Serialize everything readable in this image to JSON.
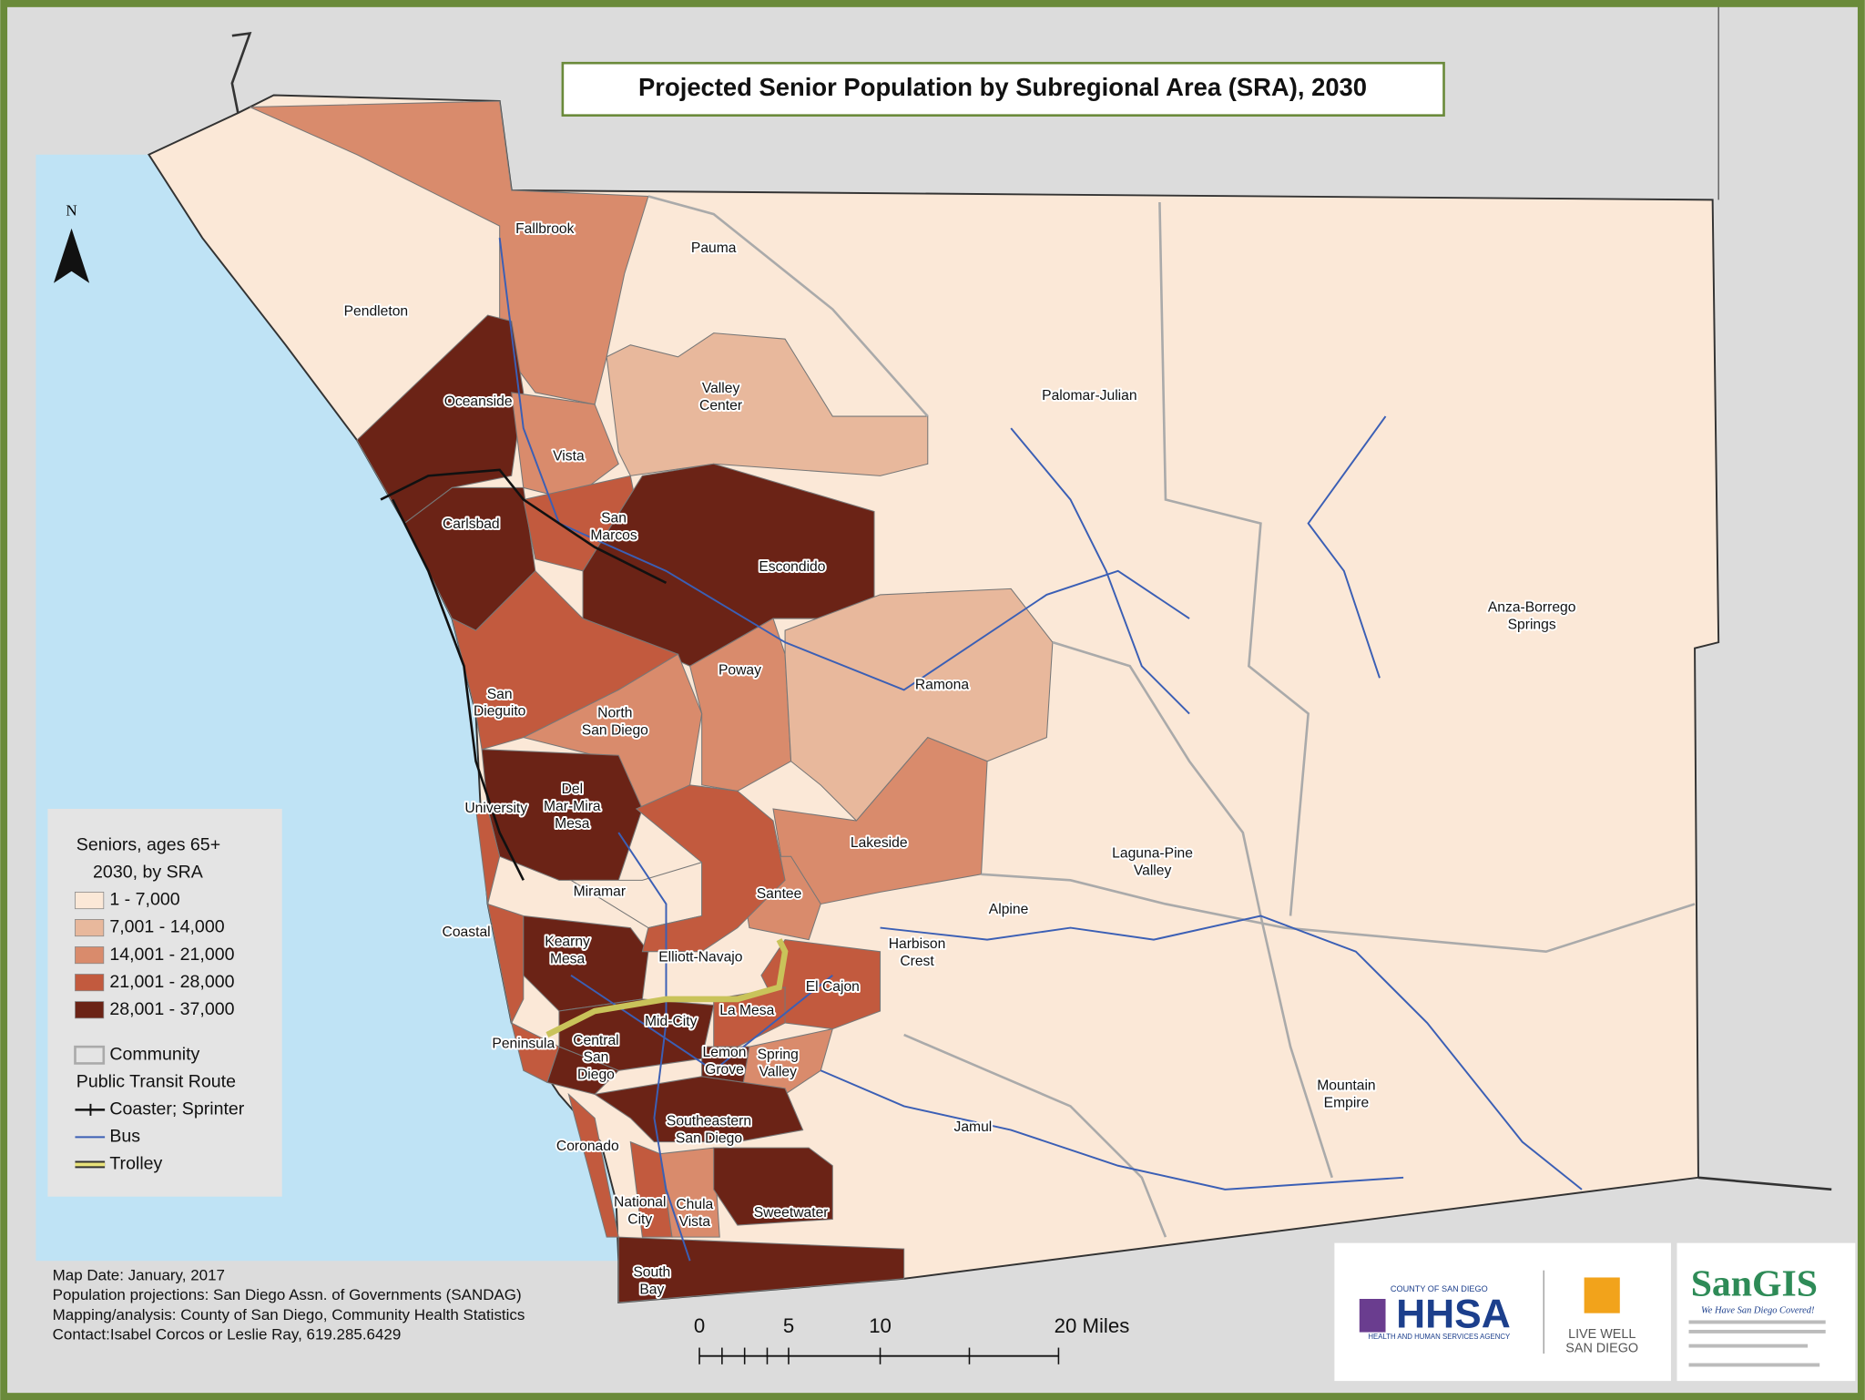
{
  "title": "Projected Senior Population by Subregional Area (SRA), 2030",
  "north_label": "N",
  "legend": {
    "title": [
      "Seniors, ages 65+",
      "2030, by SRA"
    ],
    "classes": [
      {
        "label": "1 - 7,000",
        "color": "#fbe8d7"
      },
      {
        "label": "7,001 - 14,000",
        "color": "#e8b89c"
      },
      {
        "label": "14,001 - 21,000",
        "color": "#d98b6c"
      },
      {
        "label": "21,001 - 28,000",
        "color": "#c25a3e"
      },
      {
        "label": "28,001 - 37,000",
        "color": "#6b2316"
      }
    ],
    "community": "Community",
    "transit_title": "Public Transit Route",
    "transit": [
      "Coaster; Sprinter",
      "Bus",
      "Trolley"
    ]
  },
  "sras": [
    {
      "name": [
        "Fallbrook"
      ],
      "color": "#d98b6c"
    },
    {
      "name": [
        "Pauma"
      ]
    },
    {
      "name": [
        "Pendleton"
      ]
    },
    {
      "name": [
        "Valley",
        "Center"
      ],
      "color": "#e8b89c"
    },
    {
      "name": [
        "Oceanside"
      ],
      "color": "#6b2316"
    },
    {
      "name": [
        "Palomar-Julian"
      ]
    },
    {
      "name": [
        "Vista"
      ],
      "color": "#d98b6c"
    },
    {
      "name": [
        "Carlsbad"
      ],
      "color": "#6b2316"
    },
    {
      "name": [
        "San",
        "Marcos"
      ],
      "color": "#c25a3e"
    },
    {
      "name": [
        "Escondido"
      ],
      "color": "#6b2316"
    },
    {
      "name": [
        "Anza-Borrego",
        "Springs"
      ]
    },
    {
      "name": [
        "Poway"
      ],
      "color": "#d98b6c"
    },
    {
      "name": [
        "Ramona"
      ],
      "color": "#e8b89c"
    },
    {
      "name": [
        "San",
        "Dieguito"
      ],
      "color": "#c25a3e"
    },
    {
      "name": [
        "North",
        "San Diego"
      ],
      "color": "#d98b6c"
    },
    {
      "name": [
        "Del",
        "Mar-Mira",
        "Mesa"
      ],
      "color": "#6b2316"
    },
    {
      "name": [
        "University"
      ],
      "color": "#c25a3e"
    },
    {
      "name": [
        "Lakeside"
      ],
      "color": "#d98b6c"
    },
    {
      "name": [
        "Laguna-Pine",
        "Valley"
      ]
    },
    {
      "name": [
        "Miramar"
      ],
      "color": "#fbe8d7"
    },
    {
      "name": [
        "Santee"
      ],
      "color": "#d98b6c"
    },
    {
      "name": [
        "Alpine"
      ]
    },
    {
      "name": [
        "Coastal"
      ],
      "color": "#c25a3e"
    },
    {
      "name": [
        "Kearny",
        "Mesa"
      ],
      "color": "#6b2316"
    },
    {
      "name": [
        "Harbison",
        "Crest"
      ]
    },
    {
      "name": [
        "Elliott-Navajo"
      ],
      "color": "#c25a3e"
    },
    {
      "name": [
        "El Cajon"
      ],
      "color": "#c25a3e"
    },
    {
      "name": [
        "La Mesa"
      ],
      "color": "#c25a3e"
    },
    {
      "name": [
        "Mid-City"
      ],
      "color": "#6b2316"
    },
    {
      "name": [
        "Peninsula"
      ],
      "color": "#c25a3e"
    },
    {
      "name": [
        "Central",
        "San",
        "Diego"
      ],
      "color": "#6b2316"
    },
    {
      "name": [
        "Lemon",
        "Grove"
      ],
      "color": "#6b2316"
    },
    {
      "name": [
        "Spring",
        "Valley"
      ],
      "color": "#d98b6c"
    },
    {
      "name": [
        "Mountain",
        "Empire"
      ]
    },
    {
      "name": [
        "Jamul"
      ]
    },
    {
      "name": [
        "Southeastern",
        "San Diego"
      ],
      "color": "#6b2316"
    },
    {
      "name": [
        "Coronado"
      ],
      "color": "#c25a3e"
    },
    {
      "name": [
        "National",
        "City"
      ],
      "color": "#c25a3e"
    },
    {
      "name": [
        "Chula",
        "Vista"
      ],
      "color": "#d98b6c"
    },
    {
      "name": [
        "Sweetwater"
      ],
      "color": "#6b2316"
    },
    {
      "name": [
        "South",
        "Bay"
      ],
      "color": "#6b2316"
    }
  ],
  "scale": [
    "0",
    "5",
    "10",
    "20 Miles"
  ],
  "footer": [
    "Map Date: January, 2017",
    "Population projections:  San Diego Assn. of Governments (SANDAG)",
    "Mapping/analysis: County of San Diego, Community Health Statistics",
    "Contact:Isabel Corcos or Leslie Ray, 619.285.6429"
  ],
  "logos": {
    "county": "COUNTY OF SAN DIEGO",
    "hhsa": "HHSA",
    "agency": "HEALTH AND HUMAN SERVICES AGENCY",
    "live_well": "LIVE WELL",
    "san_diego": "SAN DIEGO",
    "sangis": "SanGIS",
    "tagline": "We Have San Diego Covered!"
  }
}
